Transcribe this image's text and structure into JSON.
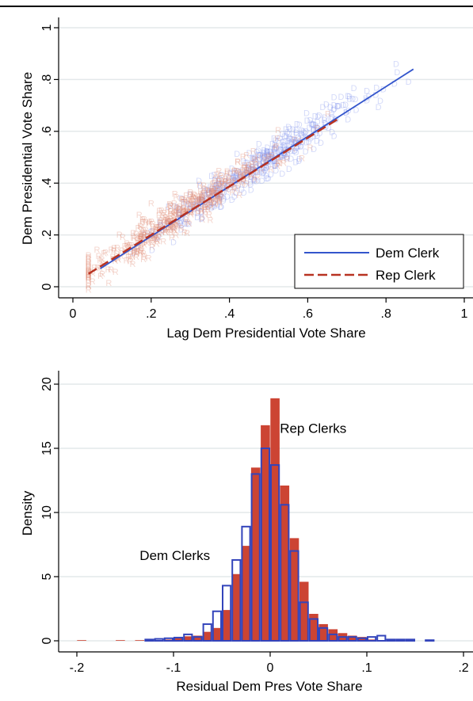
{
  "chart_data": [
    {
      "type": "scatter",
      "xlabel": "Lag Dem Presidential Vote Share",
      "ylabel": "Dem Presidential Vote Share",
      "xlim": [
        0,
        1
      ],
      "ylim": [
        0,
        1
      ],
      "xticks": [
        "0",
        ".2",
        ".4",
        ".6",
        ".8",
        "1"
      ],
      "yticks": [
        "0",
        ".2",
        ".4",
        ".6",
        ".8",
        "1"
      ],
      "grid": true,
      "legend_position": "bottom-right",
      "series": [
        {
          "name": "Dem Clerk",
          "kind": "fitted_line",
          "line_style": "solid",
          "color": "#3355cc",
          "x": [
            0.07,
            0.87
          ],
          "y": [
            0.07,
            0.84
          ]
        },
        {
          "name": "Rep Clerk",
          "kind": "fitted_line",
          "line_style": "dashed",
          "color": "#b83322",
          "x": [
            0.04,
            0.68
          ],
          "y": [
            0.05,
            0.65
          ]
        }
      ],
      "scatter_markers": [
        {
          "group": "Dem Clerk",
          "marker": "D",
          "color": "#8899ee",
          "x_range": [
            0.08,
            0.88
          ],
          "center_x": 0.48
        },
        {
          "group": "Rep Clerk",
          "marker": "R",
          "color": "#e08a74",
          "x_range": [
            0.04,
            0.68
          ],
          "center_x": 0.28
        }
      ]
    },
    {
      "type": "histogram",
      "xlabel": "Residual Dem Pres Vote Share",
      "ylabel": "Density",
      "xlim": [
        -0.2,
        0.2
      ],
      "ylim": [
        0,
        20
      ],
      "xticks": [
        "-.2",
        "-.1",
        "0",
        ".1",
        ".2"
      ],
      "yticks": [
        "0",
        "5",
        "10",
        "15",
        "20"
      ],
      "grid": true,
      "bin_width": 0.01,
      "series": [
        {
          "name": "Rep Clerks",
          "style": "filled",
          "color": "#cc4433",
          "bin_start": [
            -0.2,
            -0.16,
            -0.14,
            -0.13,
            -0.11,
            -0.1,
            -0.09,
            -0.08,
            -0.07,
            -0.06,
            -0.05,
            -0.04,
            -0.03,
            -0.02,
            -0.01,
            0.0,
            0.01,
            0.02,
            0.03,
            0.04,
            0.05,
            0.06,
            0.07,
            0.08,
            0.09,
            0.1,
            0.12
          ],
          "values": [
            0.05,
            0.05,
            0.05,
            0.05,
            0.1,
            0.2,
            0.35,
            0.4,
            0.7,
            1.0,
            2.4,
            5.2,
            7.4,
            13.5,
            16.8,
            18.9,
            12.1,
            8.0,
            4.6,
            2.1,
            1.3,
            0.9,
            0.6,
            0.4,
            0.3,
            0.1,
            0.05
          ]
        },
        {
          "name": "Dem Clerks",
          "style": "outline",
          "color": "#3344bb",
          "bin_start": [
            -0.13,
            -0.12,
            -0.11,
            -0.1,
            -0.09,
            -0.08,
            -0.07,
            -0.06,
            -0.05,
            -0.04,
            -0.03,
            -0.02,
            -0.01,
            0.0,
            0.01,
            0.02,
            0.03,
            0.04,
            0.05,
            0.06,
            0.07,
            0.08,
            0.09,
            0.1,
            0.11,
            0.12,
            0.13,
            0.14,
            0.16
          ],
          "values": [
            0.1,
            0.15,
            0.2,
            0.25,
            0.5,
            0.3,
            1.3,
            2.3,
            4.3,
            6.3,
            8.9,
            13.0,
            15.0,
            13.7,
            10.6,
            7.0,
            3.0,
            1.7,
            1.0,
            0.5,
            0.3,
            0.3,
            0.2,
            0.3,
            0.4,
            0.1,
            0.1,
            0.1,
            0.05
          ]
        }
      ],
      "annotations": [
        {
          "text": "Rep Clerks",
          "x": 0.01,
          "y": 16.2
        },
        {
          "text": "Dem Clerks",
          "x": -0.135,
          "y": 6.3
        }
      ]
    }
  ]
}
